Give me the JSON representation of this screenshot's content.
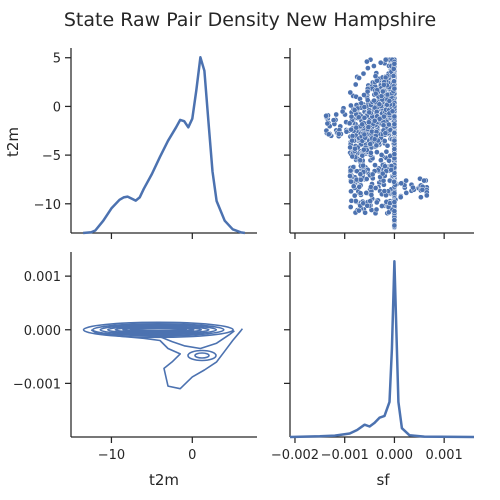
{
  "chart_data": {
    "type": "pairgrid",
    "title": "State Raw Pair Density New Hampshire",
    "variables": [
      "t2m",
      "sf"
    ],
    "color": "#4c72b0",
    "panels": [
      {
        "position": "top-left",
        "type": "kde-1d",
        "variable": "t2m",
        "xlim": [
          -15,
          8
        ],
        "ylabel": "t2m",
        "yticks": [
          "5",
          "0",
          "−5",
          "−10"
        ],
        "ytick_values": [
          5,
          0,
          -5,
          -10
        ],
        "y_range": [
          -13,
          6
        ],
        "curve": {
          "x": [
            -13.5,
            -12.5,
            -12,
            -11,
            -10,
            -9,
            -8.5,
            -8,
            -7.5,
            -7,
            -6.5,
            -6,
            -5,
            -4,
            -3,
            -2,
            -1.5,
            -1,
            -0.5,
            0,
            0.5,
            1,
            1.5,
            2,
            2.5,
            3,
            4,
            5,
            6,
            6.5
          ],
          "density": [
            0.0,
            0.003,
            0.01,
            0.05,
            0.1,
            0.135,
            0.145,
            0.148,
            0.14,
            0.132,
            0.145,
            0.18,
            0.24,
            0.31,
            0.375,
            0.43,
            0.46,
            0.455,
            0.43,
            0.465,
            0.58,
            0.715,
            0.66,
            0.45,
            0.25,
            0.13,
            0.05,
            0.015,
            0.003,
            0.0
          ]
        }
      },
      {
        "position": "top-right",
        "type": "scatter",
        "x_variable": "sf",
        "y_variable": "t2m",
        "xlim": [
          -0.0021,
          0.0016
        ],
        "ylim": [
          -13,
          6
        ],
        "description_points_generated": true
      },
      {
        "position": "bottom-left",
        "type": "kde-2d",
        "x_variable": "t2m",
        "y_variable": "sf",
        "xlim": [
          -15,
          8
        ],
        "ylim": [
          -0.002,
          0.00145
        ],
        "xlabel": "t2m",
        "xticks": [
          "−10",
          "0"
        ],
        "xtick_values": [
          -10,
          0
        ],
        "yticks": [
          "0.001",
          "0.000",
          "−0.001"
        ],
        "ytick_values": [
          0.001,
          0.0,
          -0.001
        ]
      },
      {
        "position": "bottom-right",
        "type": "kde-1d",
        "variable": "sf",
        "xlim": [
          -0.0021,
          0.0016
        ],
        "xlabel": "sf",
        "xticks": [
          "−0.002",
          "−0.001",
          "0.000",
          "0.001"
        ],
        "xtick_values": [
          -0.002,
          -0.001,
          0.0,
          0.001
        ],
        "curve": {
          "x": [
            -0.0021,
            -0.0018,
            -0.0015,
            -0.0012,
            -0.0009,
            -0.00075,
            -0.0006,
            -0.0005,
            -0.0004,
            -0.0003,
            -0.0002,
            -0.0001,
            -5e-05,
            0.0,
            3e-05,
            8e-05,
            0.00015,
            0.0003,
            0.0006,
            0.0016
          ],
          "density": [
            0.0,
            0.002,
            0.004,
            0.008,
            0.02,
            0.04,
            0.07,
            0.06,
            0.08,
            0.11,
            0.12,
            0.2,
            0.5,
            1.0,
            0.7,
            0.2,
            0.05,
            0.01,
            0.002,
            0.0
          ]
        }
      }
    ]
  }
}
